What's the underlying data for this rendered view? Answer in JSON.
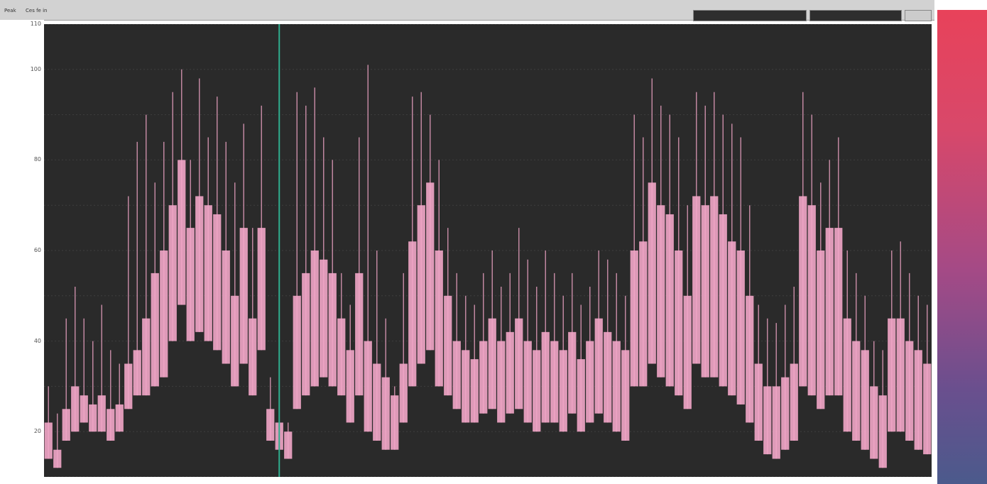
{
  "header": {
    "left_label_1": "Peak",
    "left_label_2": "Ces fe in",
    "control_1": "",
    "control_2": "",
    "control_3": ""
  },
  "colors": {
    "background": "#2a2a2a",
    "series": "#f2a6c8",
    "grid": "#3e3e3e",
    "cursor": "#2fae8e",
    "scale_top": "#e8425a",
    "scale_bottom": "#4b5a8c"
  },
  "chart_data": {
    "type": "bar",
    "title": "",
    "xlabel": "",
    "ylabel": "",
    "ylim": [
      10,
      110
    ],
    "yticks": [
      10,
      20,
      30,
      40,
      50,
      60,
      70,
      80,
      90,
      100,
      110
    ],
    "ytick_labels": [
      "",
      "20",
      "",
      "40",
      "",
      "60",
      "",
      "80",
      "",
      "100",
      "110"
    ],
    "grid": true,
    "cursor_x": 26,
    "x_count": 100,
    "series": [
      {
        "peak": [
          30,
          24,
          45,
          52,
          45,
          40,
          48,
          38,
          35,
          72,
          84,
          90,
          75,
          84,
          95,
          100,
          80,
          98,
          85,
          94,
          84,
          75,
          88,
          65,
          92,
          32,
          28,
          22,
          95,
          92,
          96,
          85,
          80,
          55,
          48,
          85,
          101,
          60,
          45,
          30,
          55,
          94,
          95,
          90,
          80,
          65,
          55,
          50,
          48,
          55,
          60,
          52,
          55,
          65,
          58,
          52,
          60,
          55,
          50,
          55,
          48,
          52,
          60,
          58,
          55,
          50,
          90,
          85,
          98,
          92,
          90,
          85,
          70,
          95,
          92,
          95,
          90,
          88,
          85,
          70,
          48,
          45,
          44,
          48,
          52,
          95,
          90,
          75,
          80,
          85,
          60,
          55,
          50,
          40,
          38,
          60,
          62,
          55,
          50,
          48
        ],
        "median": [
          22,
          16,
          25,
          30,
          28,
          26,
          28,
          25,
          26,
          35,
          38,
          45,
          55,
          60,
          70,
          80,
          65,
          72,
          70,
          68,
          60,
          50,
          65,
          45,
          65,
          25,
          22,
          20,
          50,
          55,
          60,
          58,
          55,
          45,
          38,
          55,
          40,
          35,
          32,
          28,
          35,
          62,
          70,
          75,
          60,
          50,
          40,
          38,
          36,
          40,
          45,
          40,
          42,
          45,
          40,
          38,
          42,
          40,
          38,
          42,
          36,
          40,
          45,
          42,
          40,
          38,
          60,
          62,
          75,
          70,
          68,
          60,
          50,
          72,
          70,
          72,
          68,
          62,
          60,
          50,
          35,
          30,
          30,
          32,
          35,
          72,
          70,
          60,
          65,
          65,
          45,
          40,
          38,
          30,
          28,
          45,
          45,
          40,
          38,
          35
        ],
        "trough": [
          14,
          12,
          18,
          20,
          22,
          20,
          20,
          18,
          20,
          25,
          28,
          28,
          30,
          32,
          40,
          48,
          40,
          42,
          40,
          38,
          35,
          30,
          35,
          28,
          38,
          18,
          16,
          14,
          25,
          28,
          30,
          32,
          30,
          28,
          22,
          28,
          20,
          18,
          16,
          16,
          22,
          30,
          35,
          38,
          30,
          28,
          25,
          22,
          22,
          24,
          25,
          22,
          24,
          25,
          22,
          20,
          22,
          22,
          20,
          24,
          20,
          22,
          24,
          22,
          20,
          18,
          30,
          30,
          35,
          32,
          30,
          28,
          25,
          35,
          32,
          32,
          30,
          28,
          26,
          22,
          18,
          15,
          14,
          16,
          18,
          30,
          28,
          25,
          28,
          28,
          20,
          18,
          16,
          14,
          12,
          20,
          20,
          18,
          16,
          15
        ]
      }
    ]
  }
}
